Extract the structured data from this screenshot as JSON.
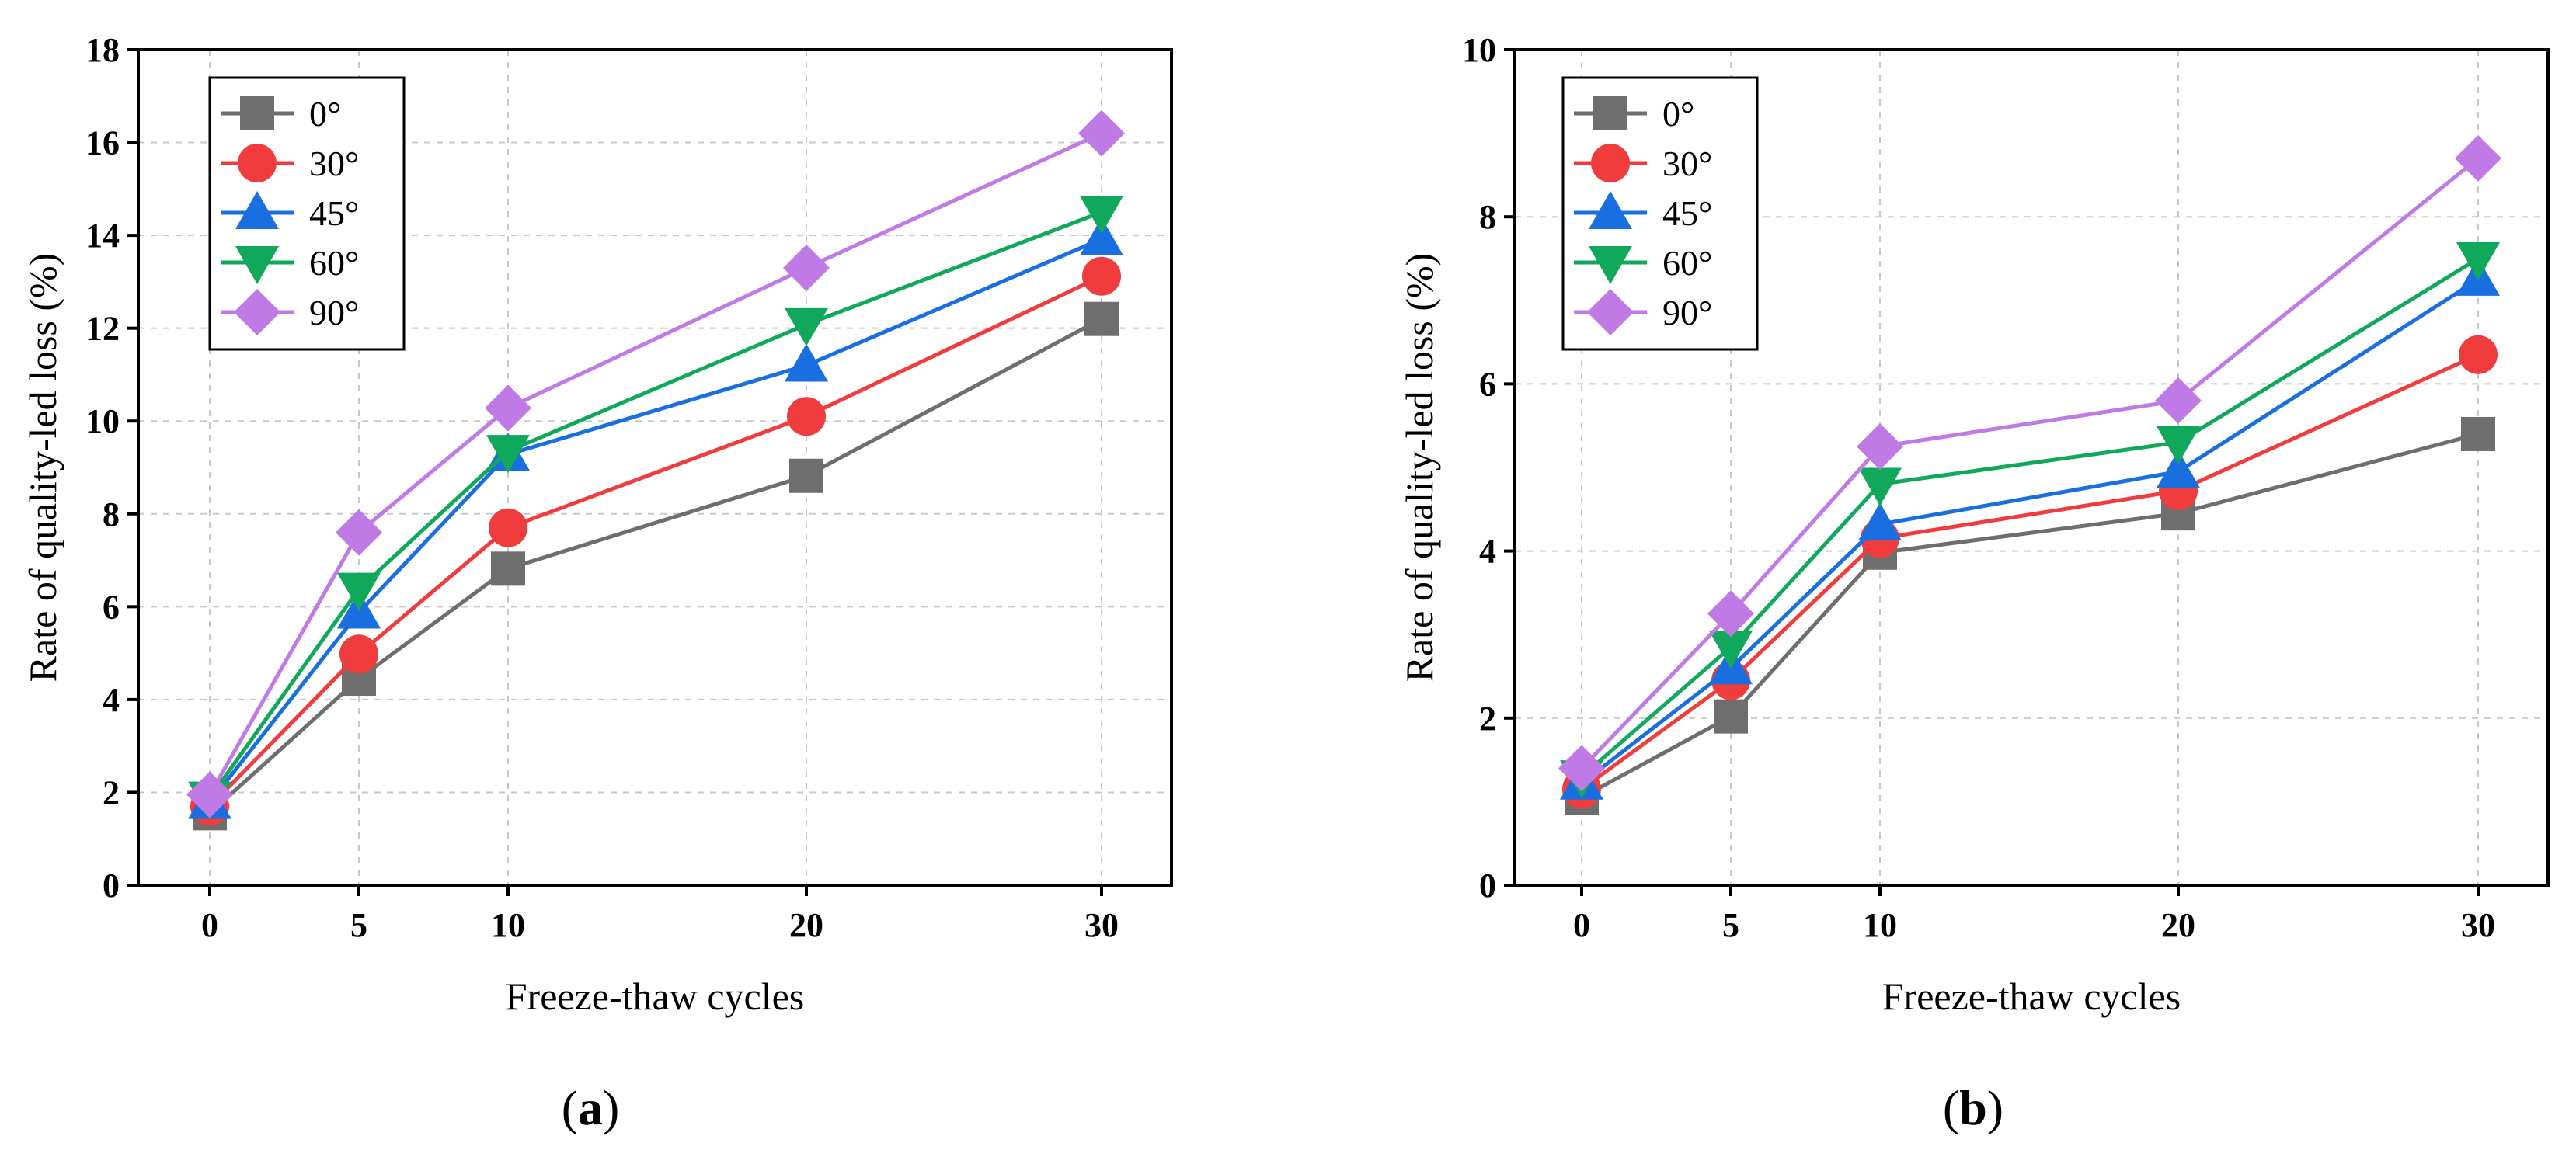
{
  "chart_data": [
    {
      "type": "line",
      "panel_label": "a",
      "title": "",
      "xlabel": "Freeze-thaw cycles",
      "ylabel": "Rate of quality-led loss (%)",
      "categories": [
        "0",
        "5",
        "10",
        "20",
        "30"
      ],
      "yticks": [
        "0",
        "2",
        "4",
        "6",
        "8",
        "10",
        "12",
        "14",
        "16",
        "18"
      ],
      "ylim": [
        0,
        18
      ],
      "grid": true,
      "legend_position": "top-left",
      "series": [
        {
          "name": "0°",
          "marker": "square",
          "color": "#6e6e6e",
          "values": [
            1.55,
            4.45,
            6.82,
            8.82,
            12.2
          ]
        },
        {
          "name": "30°",
          "marker": "circle",
          "color": "#f03c3c",
          "values": [
            1.7,
            4.98,
            7.7,
            10.1,
            13.12
          ]
        },
        {
          "name": "45°",
          "marker": "triangle-up",
          "color": "#1a6fe0",
          "values": [
            1.78,
            5.88,
            9.28,
            11.2,
            13.92
          ]
        },
        {
          "name": "60°",
          "marker": "triangle-down",
          "color": "#10a85a",
          "values": [
            1.88,
            6.38,
            9.35,
            12.08,
            14.5
          ]
        },
        {
          "name": "90°",
          "marker": "diamond",
          "color": "#c07ae6",
          "values": [
            1.95,
            7.6,
            10.28,
            13.3,
            16.2
          ]
        }
      ]
    },
    {
      "type": "line",
      "panel_label": "b",
      "title": "",
      "xlabel": "Freeze-thaw cycles",
      "ylabel": "Rate of quality-led loss (%)",
      "categories": [
        "0",
        "5",
        "10",
        "20",
        "30"
      ],
      "yticks": [
        "0",
        "2",
        "4",
        "6",
        "8",
        "10"
      ],
      "ylim": [
        0,
        10
      ],
      "grid": true,
      "legend_position": "top-left",
      "series": [
        {
          "name": "0°",
          "marker": "square",
          "color": "#6e6e6e",
          "values": [
            1.05,
            2.02,
            3.98,
            4.45,
            5.4
          ]
        },
        {
          "name": "30°",
          "marker": "circle",
          "color": "#f03c3c",
          "values": [
            1.15,
            2.45,
            4.15,
            4.72,
            6.35
          ]
        },
        {
          "name": "45°",
          "marker": "triangle-up",
          "color": "#1a6fe0",
          "values": [
            1.22,
            2.6,
            4.32,
            4.95,
            7.25
          ]
        },
        {
          "name": "60°",
          "marker": "triangle-down",
          "color": "#10a85a",
          "values": [
            1.3,
            2.85,
            4.8,
            5.3,
            7.5
          ]
        },
        {
          "name": "90°",
          "marker": "diamond",
          "color": "#c07ae6",
          "values": [
            1.4,
            3.25,
            5.25,
            5.8,
            8.7
          ]
        }
      ]
    }
  ]
}
